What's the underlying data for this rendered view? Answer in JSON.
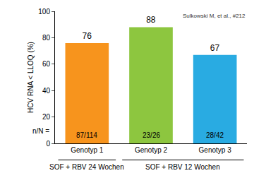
{
  "chart_data": {
    "type": "bar",
    "y_label": "HCV RNA < LLOQ (%)",
    "categories": [
      "Genotyp 1",
      "Genotyp 2",
      "Genotyp 3"
    ],
    "values": [
      76,
      88,
      67
    ],
    "colors": [
      "#F7941D",
      "#8DC63F",
      "#29ABE2"
    ],
    "ylim": [
      0,
      100
    ],
    "yticks": [
      0,
      20,
      40,
      60,
      80,
      100
    ],
    "grid": false,
    "data_labels": true,
    "counts": {
      "label": "n/N =",
      "values": [
        "87/114",
        "23/26",
        "28/42"
      ]
    },
    "groups": [
      {
        "label": "SOF + RBV 24 Wochen",
        "categories": [
          "Genotyp 1"
        ]
      },
      {
        "label": "SOF + RBV 12 Wochen",
        "categories": [
          "Genotyp 2",
          "Genotyp 3"
        ]
      }
    ],
    "annotations": [
      "Sulkowski M, et al., #212"
    ]
  }
}
